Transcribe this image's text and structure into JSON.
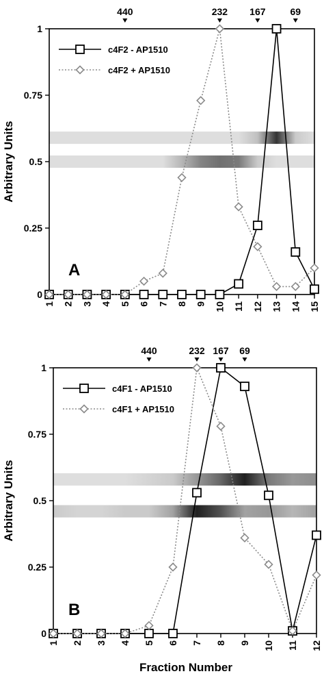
{
  "ylabel": "Arbitrary Units",
  "xlabel": "Fraction Number",
  "chart_data": [
    {
      "type": "line",
      "panel": "A",
      "x": [
        1,
        2,
        3,
        4,
        5,
        6,
        7,
        8,
        9,
        10,
        11,
        12,
        13,
        14,
        15
      ],
      "xlim": [
        1,
        15
      ],
      "ylim": [
        0,
        1
      ],
      "yticks": [
        "0",
        "0.25",
        "0.5",
        "0.75",
        "1"
      ],
      "ylabel": "Arbitrary Units",
      "xlabel": "",
      "markers": [
        {
          "label": "440",
          "x": 5
        },
        {
          "label": "232",
          "x": 10
        },
        {
          "label": "167",
          "x": 12
        },
        {
          "label": "69",
          "x": 14
        }
      ],
      "series": [
        {
          "name": "c4F2 - AP1510",
          "style": "solid-square",
          "color": "#000000",
          "values": [
            0,
            0,
            0,
            0,
            0,
            0,
            0,
            0,
            0,
            0,
            0.04,
            0.26,
            1.0,
            0.16,
            0.02
          ]
        },
        {
          "name": "c4F2 + AP1510",
          "style": "dotted-diamond",
          "color": "#8a8a8a",
          "values": [
            0,
            0,
            0,
            0,
            0,
            0.05,
            0.08,
            0.44,
            0.73,
            1.0,
            0.33,
            0.18,
            0.03,
            0.03,
            0.1
          ]
        }
      ],
      "gel_bands": [
        {
          "lane": "upper",
          "y": 0.59,
          "intensity": [
            0,
            0,
            0,
            0,
            0,
            0,
            0,
            0,
            0,
            0,
            0,
            0.15,
            0.85,
            0.1,
            0
          ]
        },
        {
          "lane": "lower",
          "y": 0.5,
          "intensity": [
            0,
            0,
            0,
            0,
            0,
            0,
            0,
            0.2,
            0.45,
            0.55,
            0.5,
            0.1,
            0,
            0,
            0
          ]
        }
      ]
    },
    {
      "type": "line",
      "panel": "B",
      "x": [
        1,
        2,
        3,
        4,
        5,
        6,
        7,
        8,
        9,
        10,
        11,
        12
      ],
      "xlim": [
        1,
        12
      ],
      "ylim": [
        0,
        1
      ],
      "yticks": [
        "0",
        "0.25",
        "0.5",
        "0.75",
        "1"
      ],
      "ylabel": "Arbitrary Units",
      "xlabel": "Fraction Number",
      "markers": [
        {
          "label": "440",
          "x": 5
        },
        {
          "label": "232",
          "x": 7
        },
        {
          "label": "167",
          "x": 8
        },
        {
          "label": "69",
          "x": 9
        }
      ],
      "series": [
        {
          "name": "c4F1 - AP1510",
          "style": "solid-square",
          "color": "#000000",
          "values": [
            0,
            0,
            0,
            0,
            0,
            0,
            0.53,
            1.0,
            0.93,
            0.52,
            0.01,
            0.37
          ]
        },
        {
          "name": "c4F1 + AP1510",
          "style": "dotted-diamond",
          "color": "#8a8a8a",
          "values": [
            0,
            0,
            0,
            0,
            0.03,
            0.25,
            1.0,
            0.78,
            0.36,
            0.26,
            0.01,
            0.22
          ]
        }
      ],
      "gel_bands": [
        {
          "lane": "upper",
          "y": 0.58,
          "intensity": [
            0,
            0,
            0,
            0,
            0.05,
            0.1,
            0.35,
            0.6,
            0.95,
            0.5,
            0.35,
            0.4
          ]
        },
        {
          "lane": "lower",
          "y": 0.46,
          "intensity": [
            0.1,
            0.05,
            0.05,
            0.1,
            0.1,
            0.3,
            0.95,
            0.7,
            0.3,
            0.35,
            0.2,
            0.3
          ]
        }
      ]
    }
  ],
  "panels": [
    {
      "letter": "A",
      "legend": [
        "c4F2 - AP1510",
        "c4F2 + AP1510"
      ]
    },
    {
      "letter": "B",
      "legend": [
        "c4F1 - AP1510",
        "c4F1 + AP1510"
      ]
    }
  ]
}
